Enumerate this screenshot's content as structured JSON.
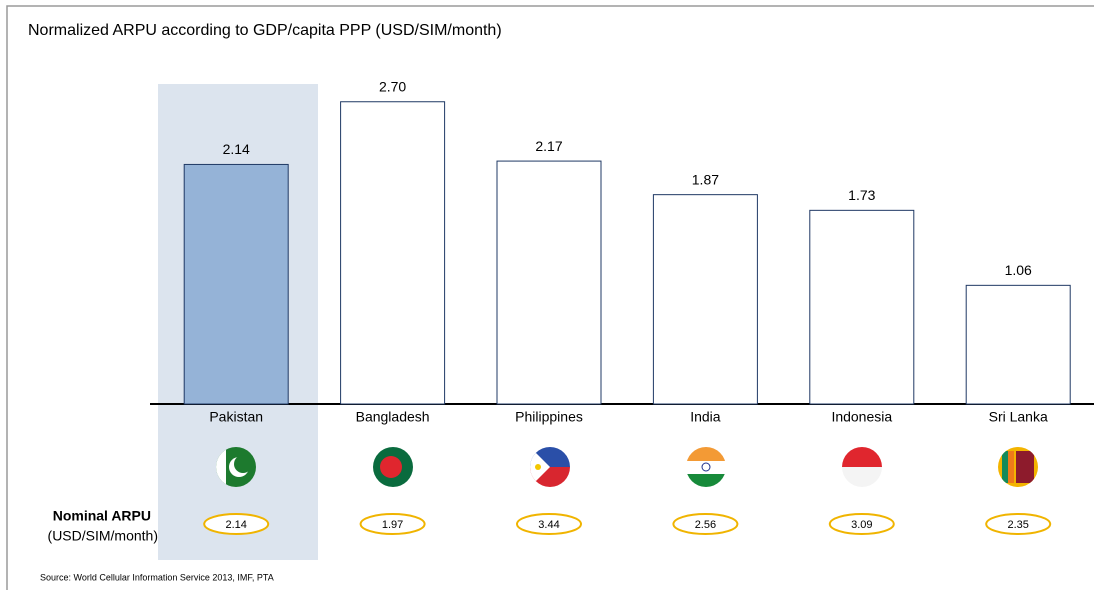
{
  "chart_data": {
    "type": "bar",
    "title": "Normalized ARPU according to GDP/capita PPP (USD/SIM/month)",
    "categories": [
      "Pakistan",
      "Bangladesh",
      "Philippines",
      "India",
      "Indonesia",
      "Sri Lanka"
    ],
    "values": [
      2.14,
      2.7,
      2.17,
      1.87,
      1.73,
      1.06
    ],
    "value_labels": [
      "2.14",
      "2.70",
      "2.17",
      "1.87",
      "1.73",
      "1.06"
    ],
    "colors": [
      "#95b3d7",
      "#ffffff",
      "#ffffff",
      "#ffffff",
      "#ffffff",
      "#ffffff"
    ],
    "ylim": [
      0,
      3.6
    ],
    "nominal_arpu": {
      "label": "Nominal ARPU",
      "unit": "(USD/SIM/month)",
      "values": [
        2.14,
        1.97,
        3.44,
        2.56,
        3.09,
        2.35
      ]
    },
    "source": "Source:  World Cellular Information Service 2013, IMF, PTA"
  }
}
